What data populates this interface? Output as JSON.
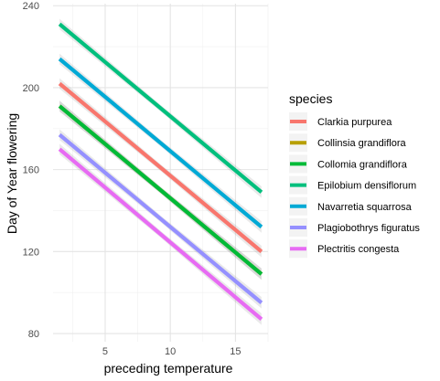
{
  "chart_data": {
    "type": "line",
    "title": "",
    "xlabel": "preceding temperature",
    "ylabel": "Day of Year flowering",
    "xlim": [
      1,
      17.5
    ],
    "ylim": [
      76,
      241
    ],
    "x_ticks": [
      5,
      10,
      15
    ],
    "y_ticks": [
      80,
      120,
      160,
      200,
      240
    ],
    "grid": true,
    "confidence_band": true,
    "legend": {
      "title": "species",
      "placement": "right"
    },
    "series": [
      {
        "name": "Clarkia purpurea",
        "color": "#F8766D",
        "x": [
          1.5,
          17
        ],
        "y": [
          202,
          120
        ]
      },
      {
        "name": "Collinsia grandiflora",
        "color": "#B79F00",
        "x": [
          1.5,
          17
        ],
        "y": [
          191,
          109
        ]
      },
      {
        "name": "Collomia grandiflora",
        "color": "#00BA38",
        "x": [
          1.5,
          17
        ],
        "y": [
          191,
          109
        ]
      },
      {
        "name": "Epilobium densiflorum",
        "color": "#00BF7D",
        "x": [
          1.5,
          17
        ],
        "y": [
          231,
          149
        ]
      },
      {
        "name": "Navarretia squarrosa",
        "color": "#00A9D5",
        "x": [
          1.5,
          17
        ],
        "y": [
          214,
          132
        ]
      },
      {
        "name": "Plagiobothrys figuratus",
        "color": "#9590FF",
        "x": [
          1.5,
          17
        ],
        "y": [
          177,
          95
        ]
      },
      {
        "name": "Plectritis congesta",
        "color": "#E76BF3",
        "x": [
          1.5,
          17
        ],
        "y": [
          170,
          87
        ]
      }
    ]
  }
}
